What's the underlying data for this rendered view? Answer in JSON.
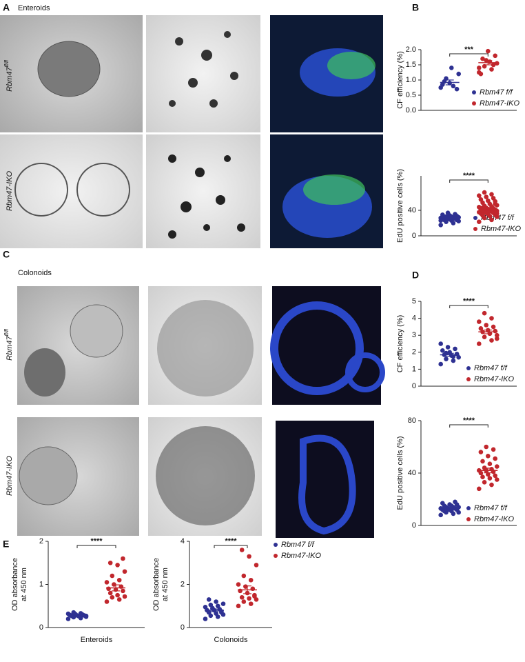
{
  "figure": {
    "panels": [
      "A",
      "B",
      "C",
      "D",
      "E"
    ],
    "sections": [
      "Enteroids",
      "Colonoids"
    ],
    "row_labels": [
      {
        "text": "Rbm47",
        "sup": "fl/fl"
      },
      {
        "text": "Rbm47-IKO"
      },
      {
        "text": "Rbm47",
        "sup": "fl/fl"
      },
      {
        "text": "Rbm47-IKO"
      }
    ]
  },
  "chart_data": [
    {
      "type": "strip",
      "ylabel": "CF efficiency (%)",
      "annotation": "***",
      "ylim": [
        0,
        2
      ],
      "yticks": [
        {
          "value": 0,
          "label": "0.0"
        },
        0.5,
        {
          "value": 1,
          "label": "1.0"
        },
        1.5,
        {
          "value": 2,
          "label": "2.0"
        }
      ],
      "series": [
        {
          "name": "Rbm47 f/f",
          "color": "#2e3192",
          "values": [
            0.75,
            0.8,
            1.05,
            1.2,
            1.4,
            0.95,
            0.7,
            0.9,
            0.85
          ],
          "mean": 0.92,
          "sem": 0.08
        },
        {
          "name": "Rbm47-IKO",
          "color": "#c1272d",
          "values": [
            1.25,
            1.35,
            1.45,
            1.55,
            1.6,
            1.7,
            1.8,
            1.95,
            1.2,
            1.5,
            1.65,
            1.4
          ],
          "mean": 1.57,
          "sem": 0.07
        }
      ]
    },
    {
      "type": "strip",
      "ylabel": "EdU positive cells (%)",
      "annotation": "****",
      "ylim": [
        0,
        94
      ],
      "yticks": [
        0,
        40
      ],
      "series": [
        {
          "name": "Rbm47 f/f",
          "color": "#2e3192",
          "values": [
            17,
            20,
            22,
            23,
            24,
            25,
            25,
            26,
            26,
            27,
            27,
            28,
            28,
            29,
            29,
            30,
            30,
            31,
            32,
            33,
            34,
            36,
            24,
            27,
            30
          ],
          "mean": 27,
          "sem": 1
        },
        {
          "name": "Rbm47-IKO",
          "color": "#c1272d",
          "values": [
            22,
            25,
            28,
            30,
            31,
            32,
            33,
            34,
            35,
            36,
            36,
            37,
            38,
            38,
            39,
            40,
            40,
            41,
            42,
            42,
            43,
            44,
            45,
            46,
            47,
            48,
            50,
            52,
            54,
            55,
            57,
            59,
            61,
            63,
            65,
            68,
            35,
            39,
            44,
            50
          ],
          "mean": 42,
          "sem": 1.8
        }
      ]
    },
    {
      "type": "strip",
      "ylabel": "CF efficiency (%)",
      "annotation": "****",
      "ylim": [
        0,
        5
      ],
      "yticks": [
        0,
        1,
        2,
        3,
        4,
        5
      ],
      "series": [
        {
          "name": "Rbm47 f/f",
          "color": "#2e3192",
          "values": [
            1.3,
            1.5,
            1.6,
            1.7,
            1.8,
            1.85,
            1.9,
            2.0,
            2.1,
            2.2,
            2.3,
            2.5,
            1.75,
            1.95
          ],
          "mean": 1.85,
          "sem": 0.09
        },
        {
          "name": "Rbm47-IKO",
          "color": "#c1272d",
          "values": [
            2.5,
            2.7,
            2.9,
            3.0,
            3.1,
            3.2,
            3.25,
            3.3,
            3.4,
            3.5,
            3.6,
            3.8,
            4.0,
            4.3,
            2.8,
            3.1
          ],
          "mean": 3.2,
          "sem": 0.11
        }
      ]
    },
    {
      "type": "strip",
      "ylabel": "EdU positive cells (%)",
      "annotation": "****",
      "ylim": [
        0,
        80
      ],
      "yticks": [
        0,
        40,
        80
      ],
      "series": [
        {
          "name": "Rbm47 f/f",
          "color": "#2e3192",
          "values": [
            8,
            9,
            10,
            10,
            11,
            11,
            12,
            12,
            12,
            13,
            13,
            13,
            14,
            14,
            14,
            15,
            15,
            16,
            16,
            17,
            18,
            12
          ],
          "mean": 13,
          "sem": 0.5
        },
        {
          "name": "Rbm47-IKO",
          "color": "#c1272d",
          "values": [
            28,
            31,
            33,
            35,
            36,
            37,
            38,
            39,
            40,
            41,
            42,
            42,
            43,
            44,
            45,
            47,
            49,
            51,
            53,
            56,
            58,
            60
          ],
          "mean": 42,
          "sem": 1.8
        }
      ]
    },
    {
      "type": "strip",
      "ylabel": [
        "OD absorbance",
        "at 450 nm"
      ],
      "xlabel": "Enteroids",
      "annotation": "****",
      "ylim": [
        0,
        2
      ],
      "yticks": [
        0,
        1,
        2
      ],
      "series": [
        {
          "name": "Rbm47 f/f",
          "color": "#2e3192",
          "values": [
            0.2,
            0.22,
            0.24,
            0.25,
            0.26,
            0.27,
            0.28,
            0.28,
            0.29,
            0.3,
            0.31,
            0.32,
            0.33,
            0.35,
            0.27
          ],
          "mean": 0.28,
          "sem": 0.01
        },
        {
          "name": "Rbm47-IKO",
          "color": "#c1272d",
          "values": [
            0.6,
            0.65,
            0.7,
            0.72,
            0.75,
            0.8,
            0.85,
            0.88,
            0.9,
            0.95,
            1.0,
            1.05,
            1.1,
            1.2,
            1.3,
            1.45,
            1.5,
            1.6
          ],
          "mean": 0.92,
          "sem": 0.07
        }
      ]
    },
    {
      "type": "strip",
      "ylabel": [
        "OD absorbance",
        "at 450 nm"
      ],
      "xlabel": "Colonoids",
      "annotation": "****",
      "ylim": [
        0,
        4
      ],
      "yticks": [
        0,
        2,
        4
      ],
      "series": [
        {
          "name": "Rbm47 f/f",
          "color": "#2e3192",
          "values": [
            0.4,
            0.5,
            0.55,
            0.6,
            0.65,
            0.7,
            0.75,
            0.8,
            0.8,
            0.85,
            0.9,
            0.95,
            1.0,
            1.05,
            1.1,
            1.2,
            1.3,
            0.7
          ],
          "mean": 0.8,
          "sem": 0.06
        },
        {
          "name": "Rbm47-IKO",
          "color": "#c1272d",
          "values": [
            1.0,
            1.1,
            1.2,
            1.3,
            1.35,
            1.4,
            1.5,
            1.6,
            1.7,
            1.8,
            1.9,
            2.0,
            2.2,
            2.4,
            2.9,
            3.3,
            3.6,
            1.45
          ],
          "mean": 1.75,
          "sem": 0.18
        }
      ]
    }
  ]
}
